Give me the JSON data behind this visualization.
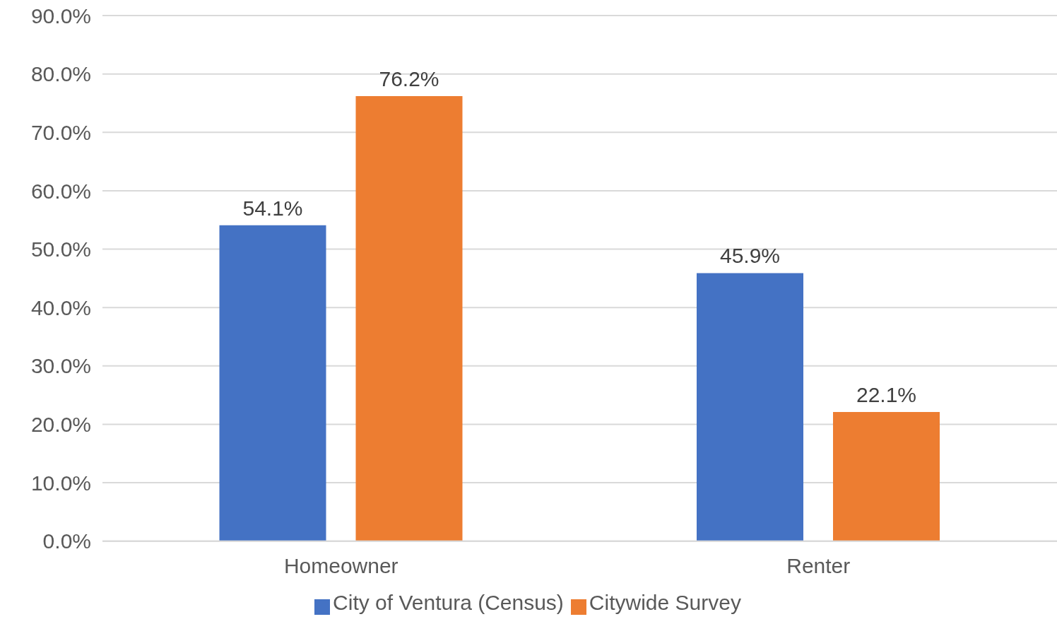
{
  "chart_data": {
    "type": "bar",
    "categories": [
      "Homeowner",
      "Renter"
    ],
    "series": [
      {
        "name": "City of Ventura (Census)",
        "color": "#4472c4",
        "values": [
          54.1,
          45.9
        ],
        "value_labels": [
          "54.1%",
          "45.9%"
        ]
      },
      {
        "name": "Citywide Survey",
        "color": "#ed7d31",
        "values": [
          76.2,
          22.1
        ],
        "value_labels": [
          "76.2%",
          "22.1%"
        ]
      }
    ],
    "ylim": [
      0,
      90
    ],
    "yticks": [
      {
        "value": 0,
        "label": "0.0%"
      },
      {
        "value": 10,
        "label": "10.0%"
      },
      {
        "value": 20,
        "label": "20.0%"
      },
      {
        "value": 30,
        "label": "30.0%"
      },
      {
        "value": 40,
        "label": "40.0%"
      },
      {
        "value": 50,
        "label": "50.0%"
      },
      {
        "value": 60,
        "label": "60.0%"
      },
      {
        "value": 70,
        "label": "70.0%"
      },
      {
        "value": 80,
        "label": "80.0%"
      },
      {
        "value": 90,
        "label": "90.0%"
      }
    ],
    "grid": "y",
    "legend": "bottom"
  }
}
